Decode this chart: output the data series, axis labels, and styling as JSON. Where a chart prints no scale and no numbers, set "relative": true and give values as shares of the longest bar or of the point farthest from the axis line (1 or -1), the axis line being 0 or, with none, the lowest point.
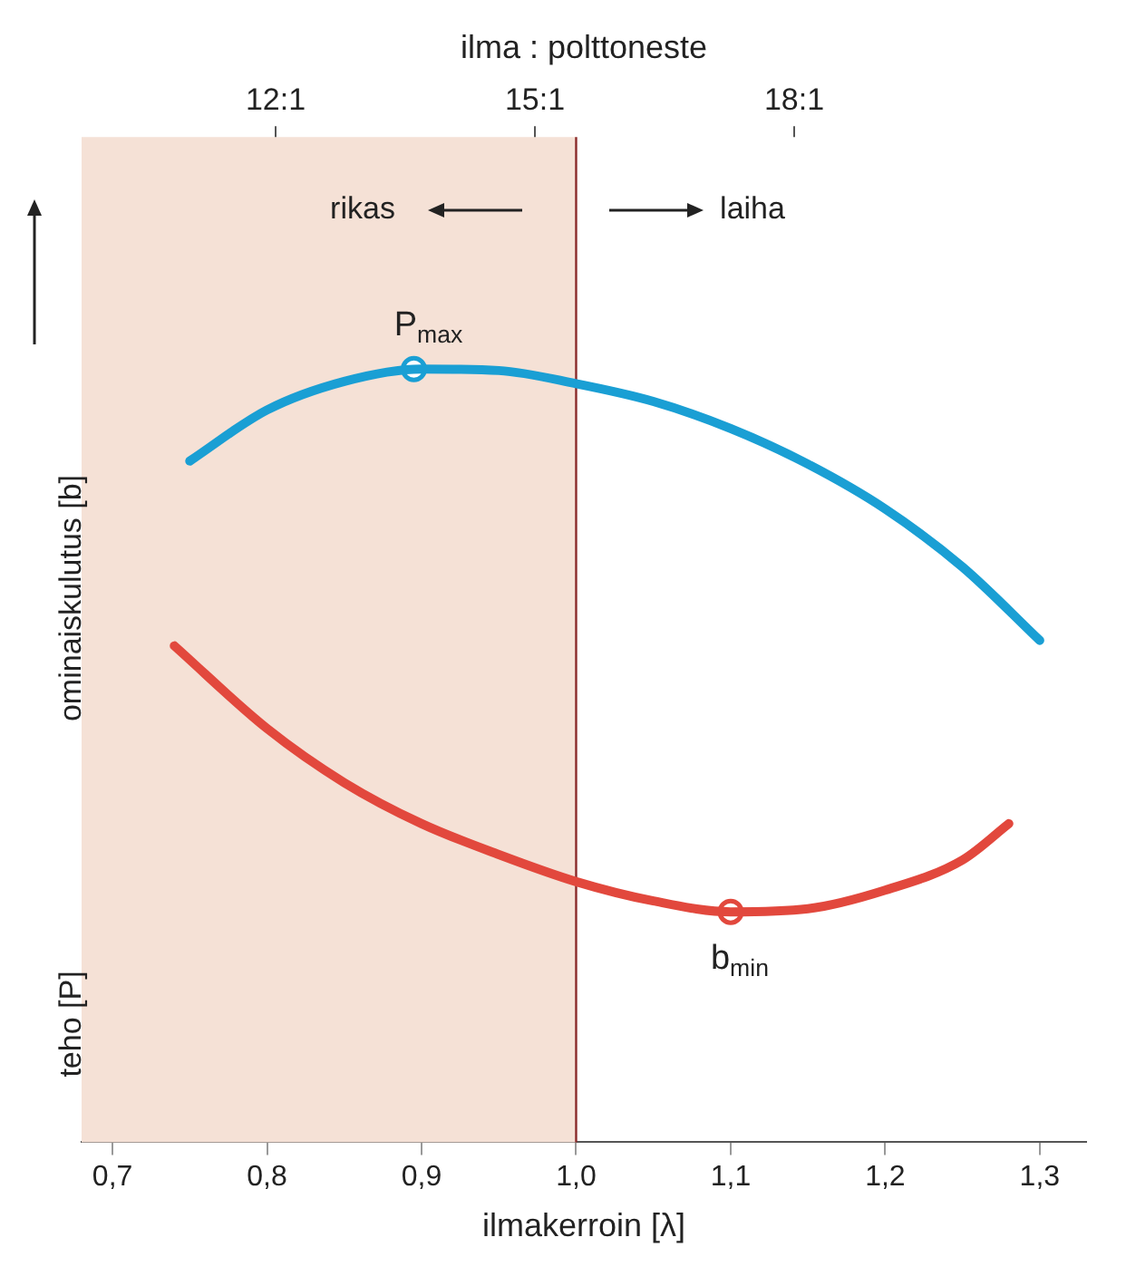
{
  "chart_data": {
    "type": "line",
    "relative": true,
    "title": "ilma : polttoneste",
    "xlabel": "ilmakerroin [λ]",
    "ylabel": "ominaiskulutus [b]",
    "xlim": [
      0.68,
      1.33
    ],
    "xticks": [
      {
        "value": 0.7,
        "label": "0,7"
      },
      {
        "value": 0.8,
        "label": "0,8"
      },
      {
        "value": 0.9,
        "label": "0,9"
      },
      {
        "value": 1.0,
        "label": "1,0"
      },
      {
        "value": 1.1,
        "label": "1,1"
      },
      {
        "value": 1.2,
        "label": "1,2"
      },
      {
        "value": 1.3,
        "label": "1,3"
      }
    ],
    "grid": false,
    "legend": false,
    "marker": "none",
    "line_style": "solid",
    "series": [
      {
        "color": "#1a9fd4",
        "x": [
          0.75,
          0.8,
          0.85,
          0.9,
          0.95,
          1.0,
          1.05,
          1.1,
          1.15,
          1.2,
          1.25,
          1.3
        ],
        "values": [
          0.881,
          0.947,
          0.984,
          1.0,
          0.998,
          0.981,
          0.958,
          0.923,
          0.877,
          0.819,
          0.744,
          0.649
        ]
      },
      {
        "color": "#e2483d",
        "x": [
          0.74,
          0.8,
          0.85,
          0.9,
          0.95,
          1.0,
          1.05,
          1.1,
          1.15,
          1.2,
          1.25,
          1.28
        ],
        "values": [
          0.642,
          0.535,
          0.465,
          0.412,
          0.372,
          0.337,
          0.312,
          0.298,
          0.302,
          0.326,
          0.365,
          0.412
        ]
      },
      {
        "type": "scatter",
        "marker": "circle",
        "color": "#1a9fd4",
        "x": [
          0.895
        ],
        "values": [
          1.0
        ]
      },
      {
        "type": "scatter",
        "marker": "circle",
        "color": "#e2483d",
        "x": [
          1.1
        ],
        "values": [
          0.298
        ]
      }
    ],
    "bands": [
      {
        "axis": "x",
        "from": 0.68,
        "to": 1.0,
        "color": "#f5e1d6"
      }
    ],
    "ref_lines": [
      {
        "axis": "x",
        "value": 1.0,
        "color": "#8b2a2a"
      }
    ],
    "annotations": [
      "rikas",
      "laiha",
      "teho [P]",
      "12:1",
      "15:1",
      "18:1",
      {
        "text": "P$_{max}$",
        "x": 0.895,
        "y": 1.0
      },
      {
        "text": "b$_{min}$",
        "x": 1.1,
        "y": 0.298
      }
    ]
  }
}
